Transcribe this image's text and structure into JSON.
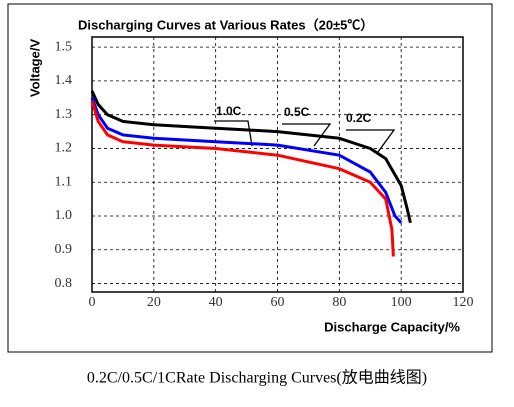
{
  "chart_data": {
    "type": "line",
    "title": "Discharging Curves at Various Rates（20±5℃）",
    "y_label": "Voltage/V",
    "x_label": "Discharge Capacity/%",
    "caption": "0.2C/0.5C/1CRate Discharging Curves(放电曲线图)",
    "xlim": [
      0,
      120
    ],
    "ylim": [
      0.775,
      1.53
    ],
    "xticks": [
      0,
      20,
      40,
      60,
      80,
      100,
      120
    ],
    "yticks": [
      {
        "value": 0.8,
        "label": "0.8"
      },
      0.9,
      {
        "value": 1,
        "label": "1.0"
      },
      1.1,
      1.2,
      1.3,
      1.4,
      1.5
    ],
    "grid": true,
    "series": [
      {
        "name": "0.2C",
        "color": "#000000",
        "x": [
          0,
          2,
          5,
          10,
          20,
          40,
          60,
          80,
          90,
          95,
          100,
          102,
          103
        ],
        "values": [
          1.37,
          1.33,
          1.3,
          1.28,
          1.27,
          1.26,
          1.25,
          1.23,
          1.2,
          1.17,
          1.09,
          1.02,
          0.98
        ]
      },
      {
        "name": "0.5C",
        "color": "#0000ff",
        "x": [
          0,
          2,
          5,
          10,
          20,
          40,
          60,
          80,
          90,
          95,
          98,
          100
        ],
        "values": [
          1.35,
          1.3,
          1.26,
          1.24,
          1.23,
          1.22,
          1.21,
          1.18,
          1.13,
          1.07,
          1.0,
          0.98
        ]
      },
      {
        "name": "1.0C",
        "color": "#ff0000",
        "x": [
          0,
          2,
          5,
          10,
          20,
          40,
          60,
          80,
          90,
          95,
          97,
          97.5
        ],
        "values": [
          1.34,
          1.28,
          1.24,
          1.22,
          1.21,
          1.2,
          1.18,
          1.14,
          1.1,
          1.05,
          0.96,
          0.88
        ]
      }
    ]
  }
}
